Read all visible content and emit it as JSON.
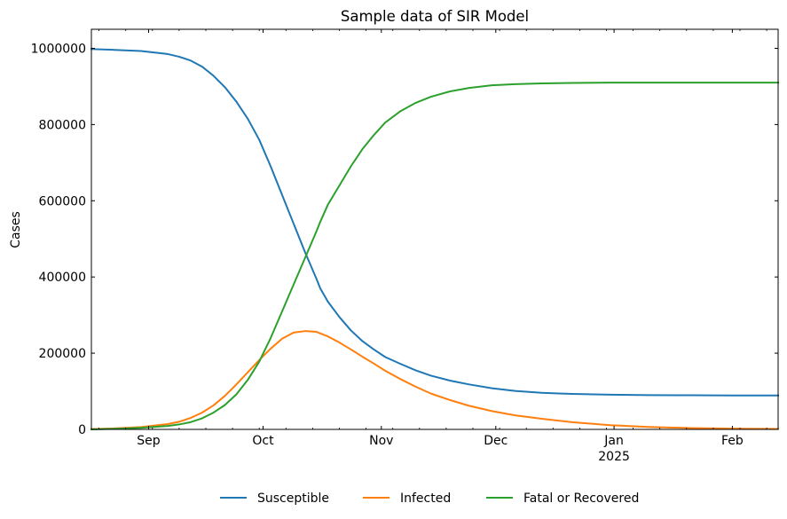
{
  "chart_data": {
    "type": "line",
    "title": "Sample data of SIR Model",
    "xlabel": "",
    "ylabel": "Cases",
    "x_axis": {
      "type": "date",
      "min": "2024-08-17",
      "max": "2025-02-13",
      "major_ticks": [
        {
          "date": "2024-09-01",
          "label": "Sep",
          "sublabel": ""
        },
        {
          "date": "2024-10-01",
          "label": "Oct",
          "sublabel": ""
        },
        {
          "date": "2024-11-01",
          "label": "Nov",
          "sublabel": ""
        },
        {
          "date": "2024-12-01",
          "label": "Dec",
          "sublabel": ""
        },
        {
          "date": "2025-01-01",
          "label": "Jan",
          "sublabel": "2025"
        },
        {
          "date": "2025-02-01",
          "label": "Feb",
          "sublabel": ""
        }
      ]
    },
    "ylim": [
      0,
      1050000
    ],
    "yticks": [
      0,
      200000,
      400000,
      600000,
      800000,
      1000000
    ],
    "grid": false,
    "legend_position": "bottom-center",
    "x": [
      "2024-08-17",
      "2024-08-23",
      "2024-08-30",
      "2024-09-06",
      "2024-09-09",
      "2024-09-12",
      "2024-09-15",
      "2024-09-18",
      "2024-09-21",
      "2024-09-24",
      "2024-09-27",
      "2024-09-30",
      "2024-10-03",
      "2024-10-06",
      "2024-10-09",
      "2024-10-12",
      "2024-10-15",
      "2024-10-16",
      "2024-10-18",
      "2024-10-21",
      "2024-10-24",
      "2024-10-27",
      "2024-10-30",
      "2024-11-02",
      "2024-11-06",
      "2024-11-10",
      "2024-11-14",
      "2024-11-19",
      "2024-11-24",
      "2024-11-30",
      "2024-12-06",
      "2024-12-13",
      "2024-12-21",
      "2024-12-31",
      "2025-01-10",
      "2025-01-21",
      "2025-02-01",
      "2025-02-13"
    ],
    "series": [
      {
        "name": "Susceptible",
        "color": "#1f77b4",
        "values": [
          998000,
          996000,
          993000,
          985000,
          978000,
          968000,
          952000,
          928000,
          898000,
          860000,
          815000,
          760000,
          690000,
          615000,
          540000,
          465000,
          395000,
          370000,
          335000,
          295000,
          260000,
          232000,
          210000,
          190000,
          172000,
          155000,
          141000,
          128000,
          118000,
          108000,
          101000,
          96000,
          93000,
          91000,
          90000,
          89500,
          89000,
          89000
        ]
      },
      {
        "name": "Infected",
        "color": "#ff7f0e",
        "values": [
          1000,
          2500,
          6000,
          14000,
          20000,
          30000,
          44000,
          63000,
          88000,
          118000,
          150000,
          182000,
          212000,
          238000,
          254000,
          258000,
          256000,
          252000,
          244000,
          228000,
          210000,
          191000,
          173000,
          154000,
          132000,
          112000,
          94000,
          77000,
          62000,
          48000,
          37000,
          28000,
          19000,
          11000,
          6500,
          3500,
          2000,
          1200
        ]
      },
      {
        "name": "Fatal or Recovered",
        "color": "#2ca02c",
        "values": [
          0,
          1500,
          4000,
          9000,
          13000,
          19000,
          29000,
          44000,
          64000,
          92000,
          130000,
          178000,
          240000,
          310000,
          380000,
          450000,
          520000,
          545000,
          590000,
          640000,
          690000,
          735000,
          772000,
          805000,
          835000,
          857000,
          873000,
          887000,
          896000,
          903000,
          906000,
          908000,
          909000,
          910000,
          910000,
          910000,
          910000,
          910000
        ]
      }
    ]
  }
}
